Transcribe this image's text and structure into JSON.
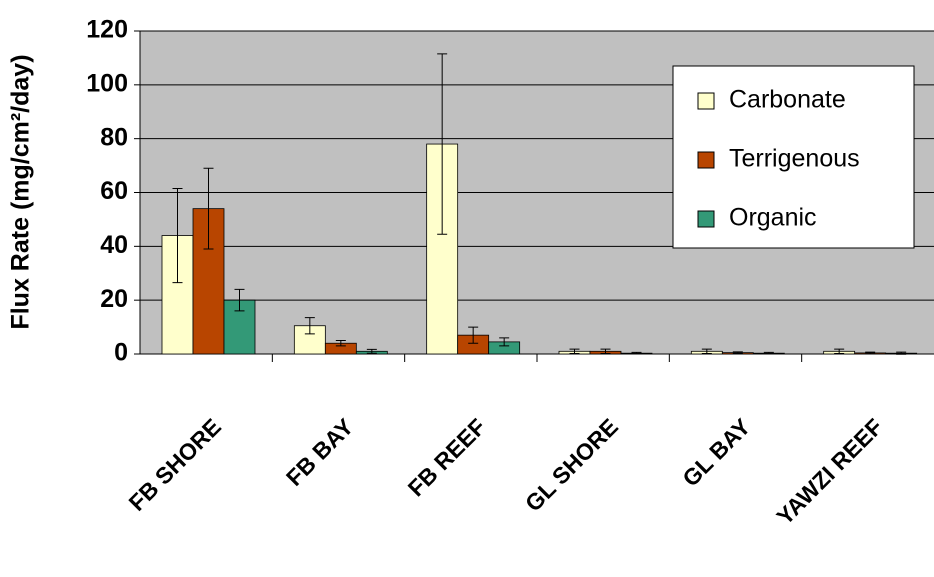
{
  "chart_data": {
    "type": "bar",
    "ylabel": "Flux Rate (mg/cm²/day)",
    "categories": [
      "FB SHORE",
      "FB BAY",
      "FB REEF",
      "GL SHORE",
      "GL BAY",
      "YAWZI REEF"
    ],
    "series": [
      {
        "name": "Carbonate",
        "color": "#ffffcc",
        "values": [
          44,
          10.5,
          78,
          1,
          1,
          1
        ],
        "errors": [
          17.5,
          3,
          33.5,
          0.8,
          0.8,
          0.8
        ]
      },
      {
        "name": "Terrigenous",
        "color": "#b84500",
        "values": [
          54,
          4,
          7,
          1,
          0.5,
          0.4
        ],
        "errors": [
          15,
          1,
          3,
          0.8,
          0.3,
          0.3
        ]
      },
      {
        "name": "Organic",
        "color": "#339977",
        "values": [
          20,
          1,
          4.5,
          0.3,
          0.3,
          0.3
        ],
        "errors": [
          4,
          0.7,
          1.5,
          0.3,
          0.3,
          0.4
        ]
      }
    ],
    "ylim": [
      0,
      120
    ],
    "yticks": [
      0,
      20,
      40,
      60,
      80,
      100,
      120
    ],
    "grid": true
  }
}
